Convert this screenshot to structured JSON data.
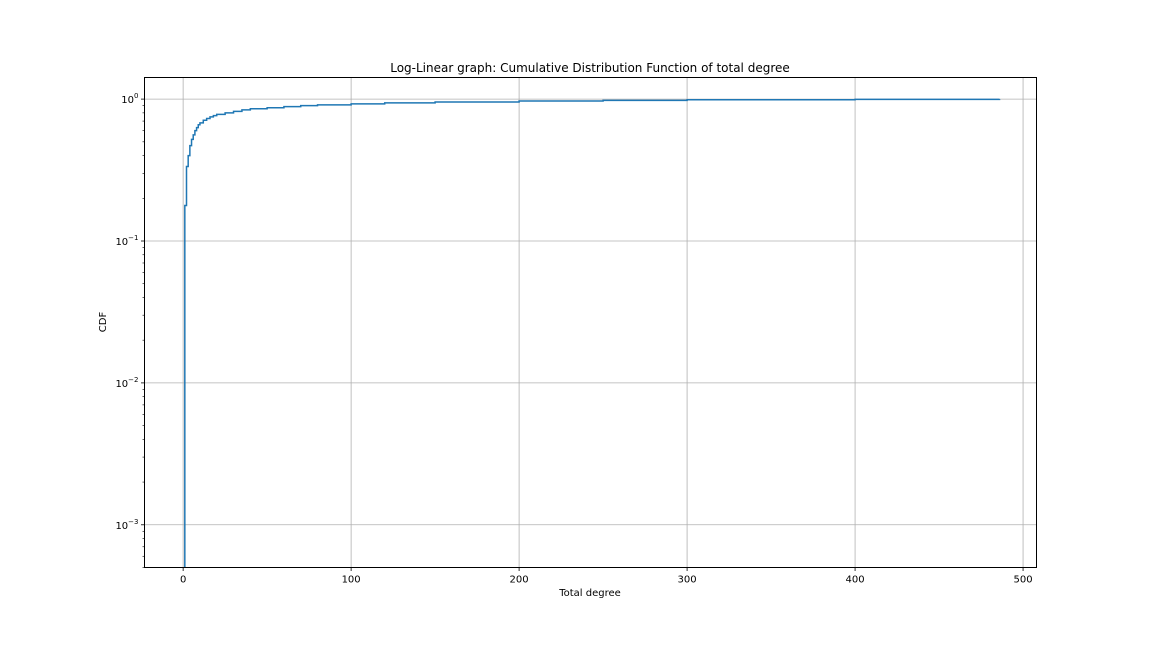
{
  "chart_data": {
    "type": "line",
    "title": "Log-Linear graph: Cumulative Distribution Function of total degree",
    "xlabel": "Total degree",
    "ylabel": "CDF",
    "xlim": [
      -23,
      508
    ],
    "ylim": [
      0.0005,
      1.42
    ],
    "yscale": "log",
    "grid": true,
    "x_ticks": [
      {
        "value": 0,
        "label": "0"
      },
      {
        "value": 100,
        "label": "100"
      },
      {
        "value": 200,
        "label": "200"
      },
      {
        "value": 300,
        "label": "300"
      },
      {
        "value": 400,
        "label": "400"
      },
      {
        "value": 500,
        "label": "500"
      }
    ],
    "y_ticks": [
      {
        "value": 0.001,
        "base": "10",
        "exp": "−3"
      },
      {
        "value": 0.01,
        "base": "10",
        "exp": "−2"
      },
      {
        "value": 0.1,
        "base": "10",
        "exp": "−1"
      },
      {
        "value": 1,
        "base": "10",
        "exp": "0"
      }
    ],
    "series": [
      {
        "color": "#1f77b4",
        "step": true,
        "x": [
          1,
          1,
          2,
          3,
          4,
          5,
          6,
          7,
          8,
          9,
          10,
          12,
          14,
          16,
          18,
          20,
          25,
          30,
          35,
          40,
          50,
          60,
          70,
          80,
          100,
          120,
          150,
          200,
          250,
          300,
          400,
          486
        ],
        "y": [
          0.0005,
          0.178,
          0.335,
          0.4,
          0.47,
          0.52,
          0.56,
          0.6,
          0.63,
          0.66,
          0.68,
          0.71,
          0.73,
          0.75,
          0.765,
          0.78,
          0.8,
          0.82,
          0.84,
          0.855,
          0.87,
          0.885,
          0.9,
          0.91,
          0.925,
          0.94,
          0.955,
          0.97,
          0.98,
          0.99,
          0.996,
          1.0
        ]
      }
    ]
  }
}
